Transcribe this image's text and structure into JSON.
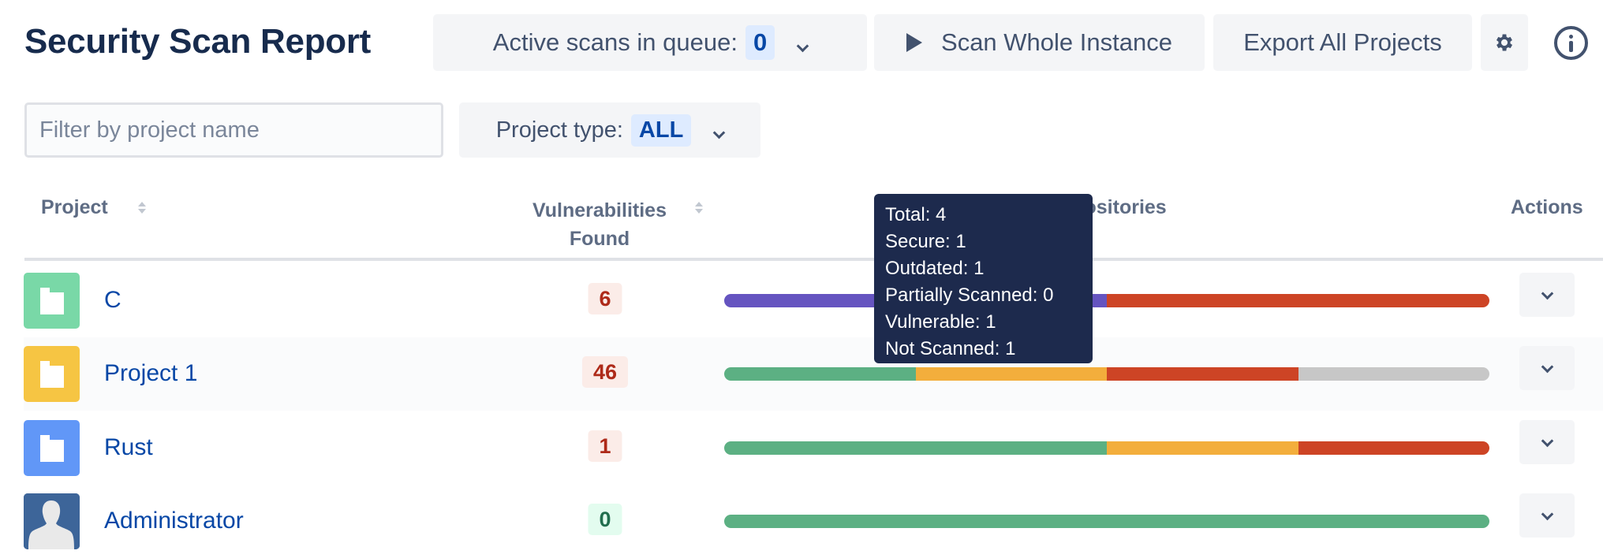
{
  "header": {
    "title": "Security Scan Report",
    "queue_label": "Active scans in queue:",
    "queue_count": "0",
    "scan_button": "Scan Whole Instance",
    "export_button": "Export All Projects"
  },
  "filters": {
    "search_placeholder": "Filter by project name",
    "search_value": "",
    "project_type_label": "Project type:",
    "project_type_value": "ALL"
  },
  "table": {
    "columns": {
      "project": "Project",
      "vulns_line1": "Vulnerabilities",
      "vulns_line2": "Found",
      "repos": "Repositories",
      "actions": "Actions"
    },
    "rows": [
      {
        "name": "C",
        "icon": "folder-icon",
        "icon_color": "#79d8a7",
        "vulnerabilities": "6",
        "status": "bad",
        "segments": [
          {
            "label": "highlighted",
            "value": 1,
            "color": "#6554c0"
          },
          {
            "label": "Vulnerable",
            "value": 1,
            "color": "#cd4425"
          }
        ]
      },
      {
        "name": "Project 1",
        "icon": "folder-icon",
        "icon_color": "#f6c543",
        "vulnerabilities": "46",
        "status": "bad",
        "segments": [
          {
            "label": "Secure",
            "value": 1,
            "color": "#5cb083"
          },
          {
            "label": "Outdated",
            "value": 1,
            "color": "#f3ae3c"
          },
          {
            "label": "Vulnerable",
            "value": 1,
            "color": "#cd4425"
          },
          {
            "label": "Not Scanned",
            "value": 1,
            "color": "#c7c7c7"
          }
        ]
      },
      {
        "name": "Rust",
        "icon": "folder-icon",
        "icon_color": "#6197f7",
        "vulnerabilities": "1",
        "status": "bad",
        "segments": [
          {
            "label": "Secure",
            "value": 2,
            "color": "#5cb083"
          },
          {
            "label": "Outdated",
            "value": 1,
            "color": "#f3ae3c"
          },
          {
            "label": "Vulnerable",
            "value": 1,
            "color": "#cd4425"
          }
        ]
      },
      {
        "name": "Administrator",
        "icon": "user-avatar-icon",
        "icon_color": "#3d6599",
        "vulnerabilities": "0",
        "status": "good",
        "segments": [
          {
            "label": "Secure",
            "value": 1,
            "color": "#5cb083"
          }
        ]
      }
    ]
  },
  "tooltip": {
    "lines": [
      "Total: 4",
      "Secure: 1",
      "Outdated: 1",
      "Partially Scanned: 0",
      "Vulnerable: 1",
      "Not Scanned: 1"
    ]
  }
}
